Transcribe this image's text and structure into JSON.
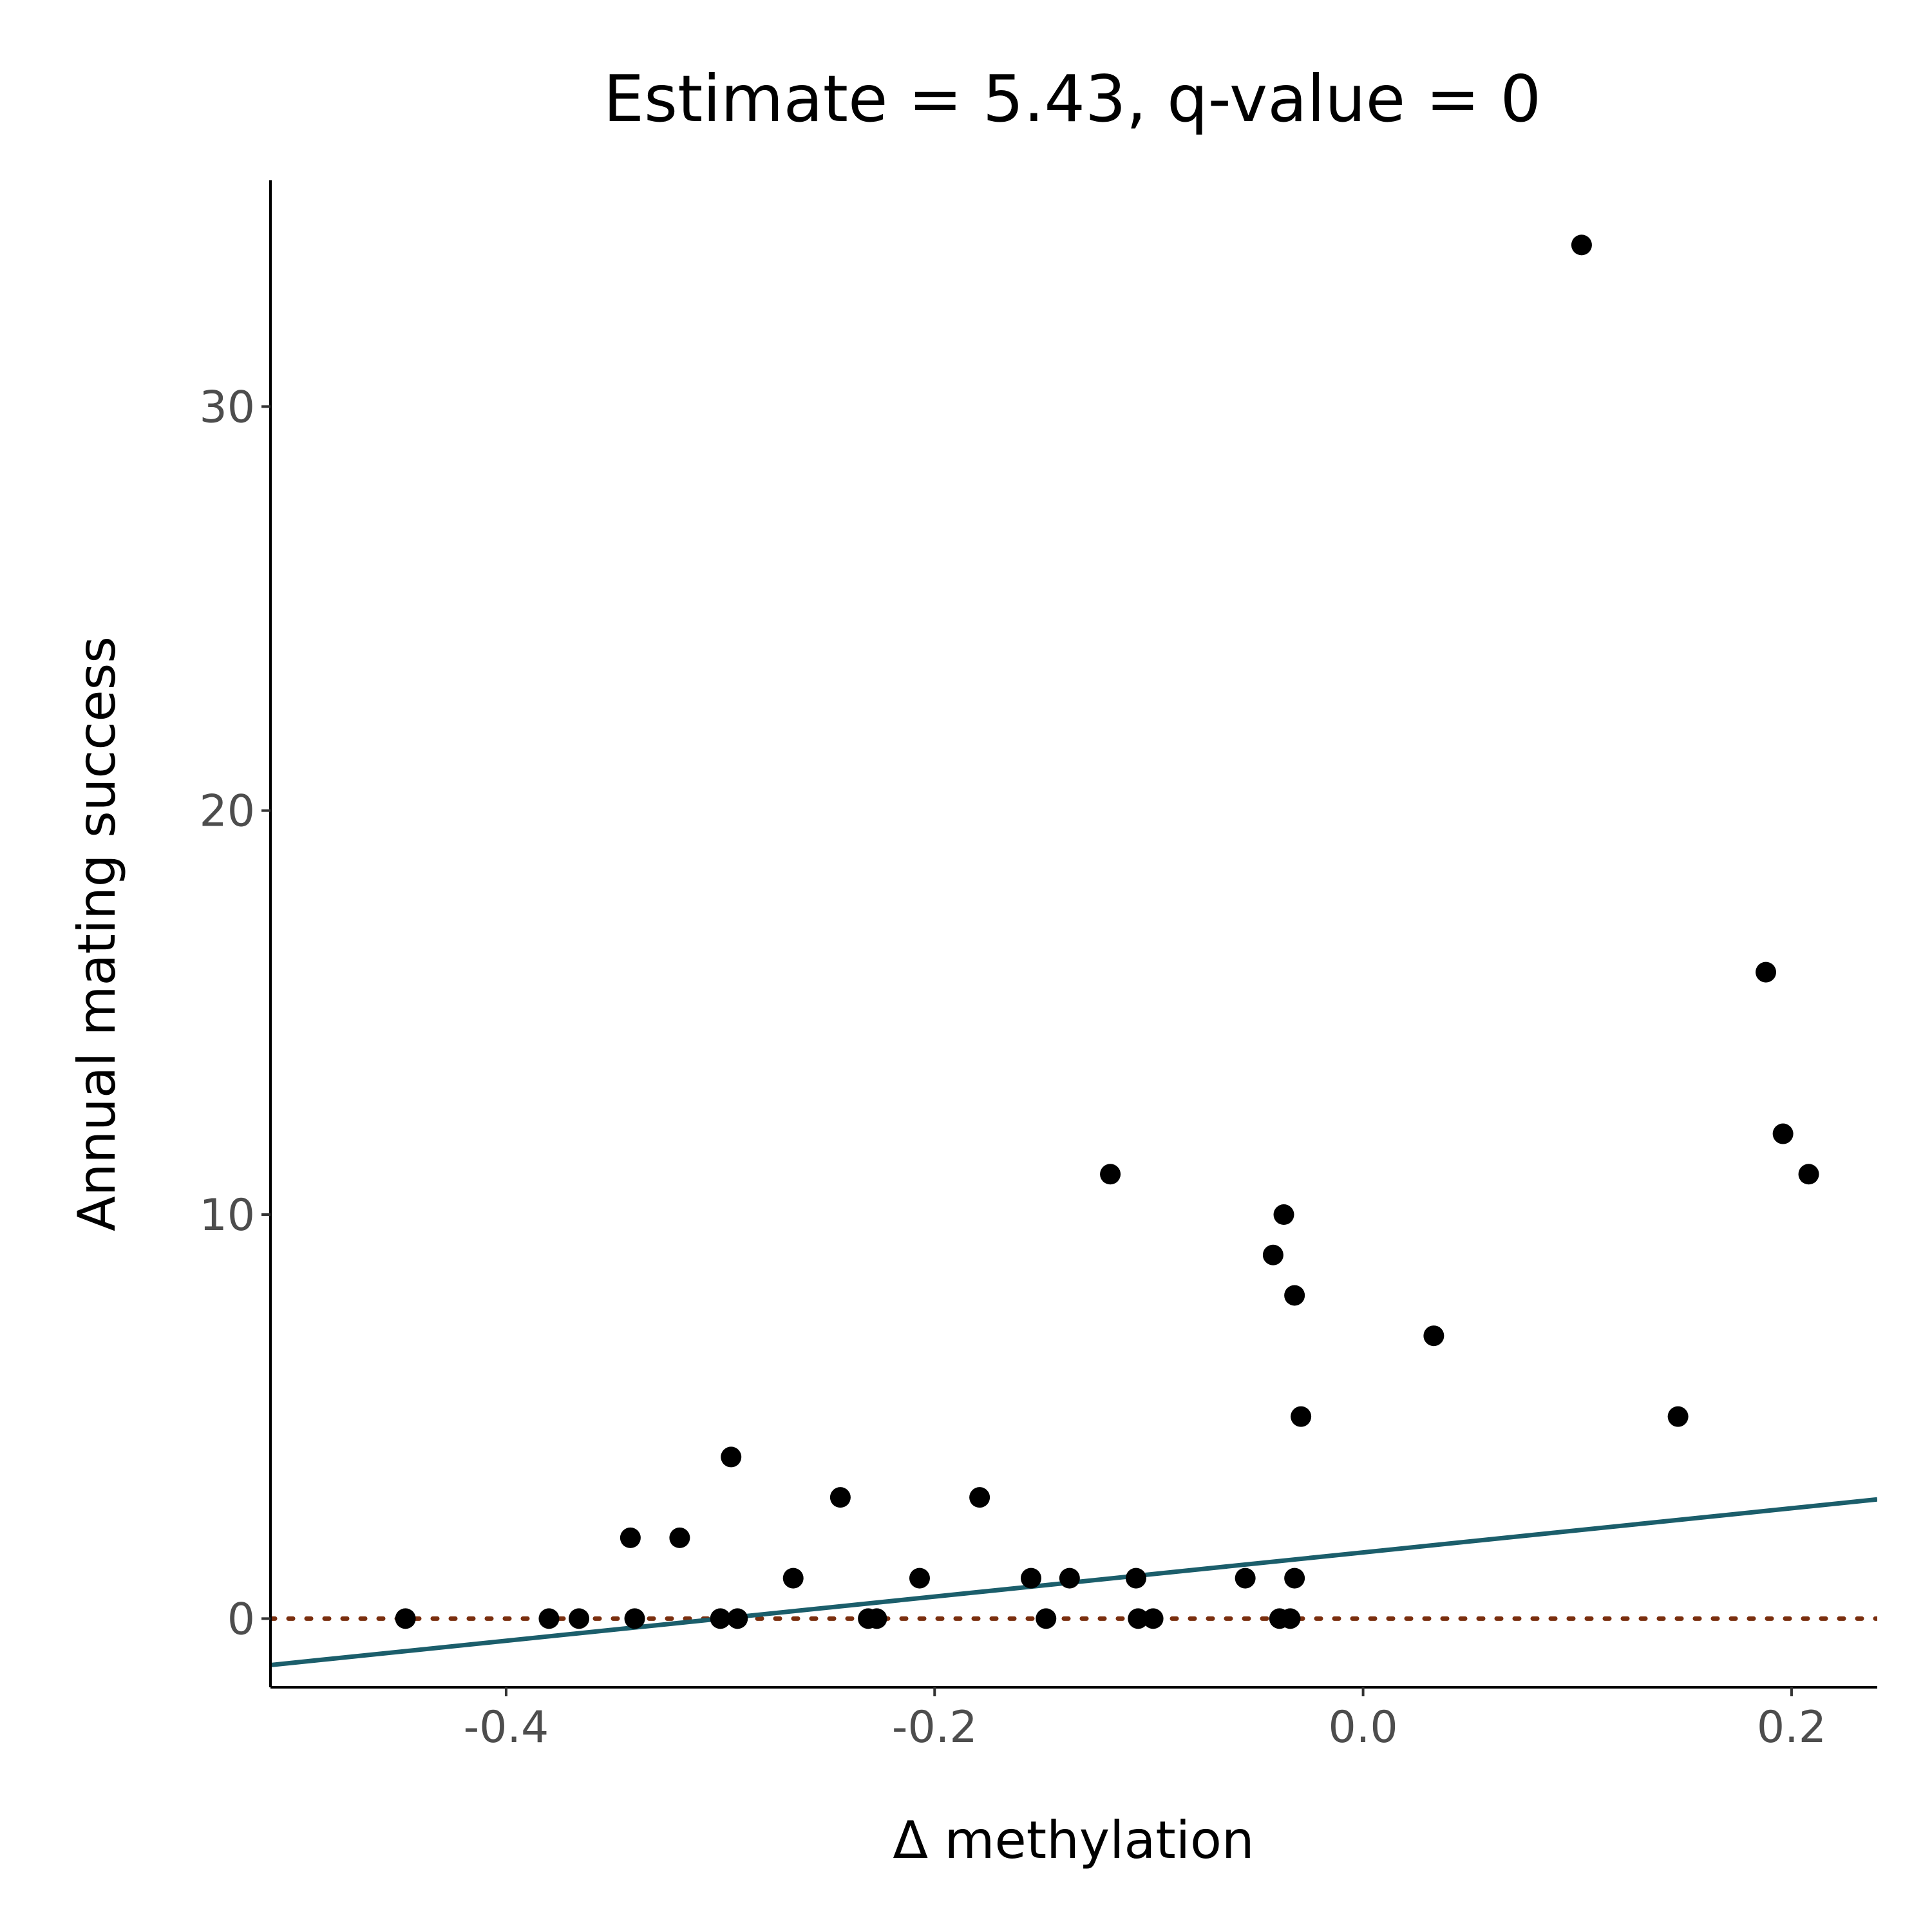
{
  "chart_data": {
    "type": "scatter",
    "title": "Estimate = 5.43, q-value = 0",
    "xlabel": "Δ methylation",
    "ylabel": "Annual mating success",
    "xlim": [
      -0.51,
      0.24
    ],
    "ylim": [
      -1.7,
      35.6
    ],
    "x_ticks": [
      -0.4,
      -0.2,
      0.0,
      0.2
    ],
    "x_tick_labels": [
      "-0.4",
      "-0.2",
      "0.0",
      "0.2"
    ],
    "y_ticks": [
      0,
      10,
      20,
      30
    ],
    "y_tick_labels": [
      "0",
      "10",
      "20",
      "30"
    ],
    "grid": false,
    "points": [
      {
        "x": -0.447,
        "y": 0
      },
      {
        "x": -0.38,
        "y": 0
      },
      {
        "x": -0.366,
        "y": 0
      },
      {
        "x": -0.34,
        "y": 0
      },
      {
        "x": -0.342,
        "y": 2
      },
      {
        "x": -0.319,
        "y": 2
      },
      {
        "x": -0.3,
        "y": 0
      },
      {
        "x": -0.292,
        "y": 0
      },
      {
        "x": -0.295,
        "y": 4
      },
      {
        "x": -0.266,
        "y": 1
      },
      {
        "x": -0.244,
        "y": 3
      },
      {
        "x": -0.231,
        "y": 0
      },
      {
        "x": -0.227,
        "y": 0
      },
      {
        "x": -0.207,
        "y": 1
      },
      {
        "x": -0.179,
        "y": 3
      },
      {
        "x": -0.155,
        "y": 1
      },
      {
        "x": -0.148,
        "y": 0
      },
      {
        "x": -0.137,
        "y": 1
      },
      {
        "x": -0.118,
        "y": 11
      },
      {
        "x": -0.106,
        "y": 1
      },
      {
        "x": -0.105,
        "y": 0
      },
      {
        "x": -0.098,
        "y": 0
      },
      {
        "x": -0.055,
        "y": 1
      },
      {
        "x": -0.042,
        "y": 9
      },
      {
        "x": -0.039,
        "y": 0
      },
      {
        "x": -0.037,
        "y": 10
      },
      {
        "x": -0.034,
        "y": 0
      },
      {
        "x": -0.032,
        "y": 8
      },
      {
        "x": -0.032,
        "y": 1
      },
      {
        "x": -0.029,
        "y": 5
      },
      {
        "x": 0.033,
        "y": 7
      },
      {
        "x": 0.102,
        "y": 34
      },
      {
        "x": 0.147,
        "y": 5
      },
      {
        "x": 0.188,
        "y": 16
      },
      {
        "x": 0.196,
        "y": 12
      },
      {
        "x": 0.208,
        "y": 11
      }
    ],
    "fit_line": {
      "x": [
        -0.51,
        0.24
      ],
      "y": [
        -1.15,
        2.95
      ]
    },
    "reference_line": {
      "y": 0
    },
    "colors": {
      "points": "#000000",
      "fit_line": "#1b5e6b",
      "reference_line": "#7a2e0e"
    }
  }
}
